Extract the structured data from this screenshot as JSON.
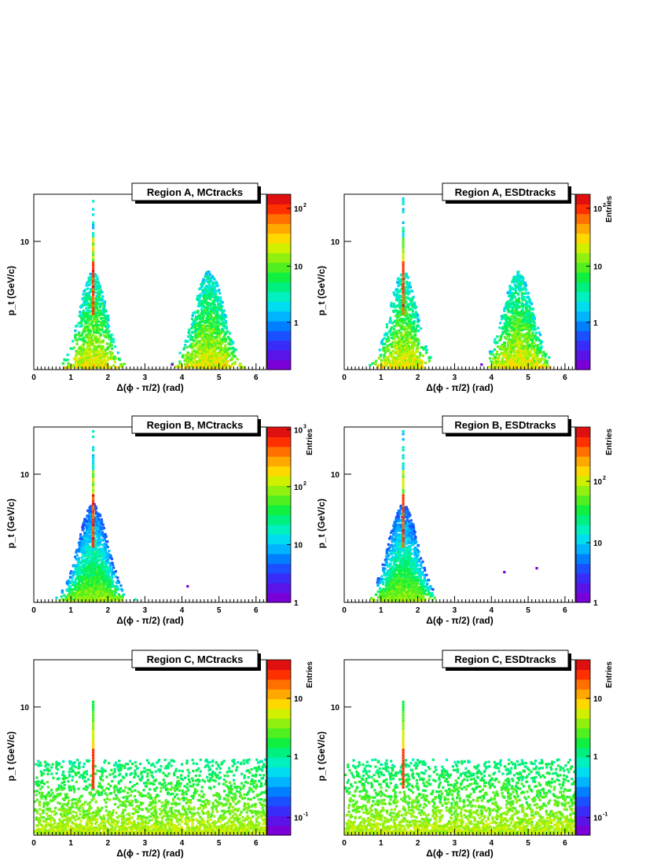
{
  "chart_data": [
    {
      "type": "heatmap",
      "title": "Region A, MCtracks",
      "xlabel": "Δ(ϕ - π/2) (rad)",
      "ylabel": "p_t (GeV/c)",
      "xlim": [
        0,
        6.28
      ],
      "x_ticks": [
        "0",
        "1",
        "2",
        "3",
        "4",
        "5",
        "6"
      ],
      "y_ticks": [
        "10"
      ],
      "y_scale": "log",
      "colorbar": {
        "scale": "log",
        "title": "",
        "ticks": [
          {
            "label": "1",
            "exp": ""
          },
          {
            "label": "10",
            "exp": ""
          },
          {
            "label": "10",
            "exp": "2"
          }
        ]
      },
      "pattern": "two-peaks"
    },
    {
      "type": "heatmap",
      "title": "Region A, ESDtracks",
      "xlabel": "Δ(ϕ - π/2) (rad)",
      "ylabel": "p_t (GeV/c)",
      "xlim": [
        0,
        6.28
      ],
      "x_ticks": [
        "0",
        "1",
        "2",
        "3",
        "4",
        "5",
        "6"
      ],
      "y_ticks": [
        "10"
      ],
      "y_scale": "log",
      "colorbar": {
        "scale": "log",
        "title": "Entries",
        "ticks": [
          {
            "label": "1",
            "exp": ""
          },
          {
            "label": "10",
            "exp": ""
          },
          {
            "label": "10",
            "exp": "2"
          }
        ]
      },
      "pattern": "two-peaks"
    },
    {
      "type": "heatmap",
      "title": "Region B, MCtracks",
      "xlabel": "Δ(ϕ - π/2) (rad)",
      "ylabel": "p_t (GeV/c)",
      "xlim": [
        0,
        6.28
      ],
      "x_ticks": [
        "0",
        "1",
        "2",
        "3",
        "4",
        "5",
        "6"
      ],
      "y_ticks": [
        "10"
      ],
      "y_scale": "log",
      "colorbar": {
        "scale": "log",
        "title": "Entries",
        "ticks": [
          {
            "label": "1",
            "exp": ""
          },
          {
            "label": "10",
            "exp": ""
          },
          {
            "label": "10",
            "exp": "2"
          },
          {
            "label": "10",
            "exp": "3"
          }
        ]
      },
      "pattern": "one-peak"
    },
    {
      "type": "heatmap",
      "title": "Region B, ESDtracks",
      "xlabel": "Δ(ϕ - π/2) (rad)",
      "ylabel": "p_t (GeV/c)",
      "xlim": [
        0,
        6.28
      ],
      "x_ticks": [
        "0",
        "1",
        "2",
        "3",
        "4",
        "5",
        "6"
      ],
      "y_ticks": [
        "10"
      ],
      "y_scale": "log",
      "colorbar": {
        "scale": "log",
        "title": "Entries",
        "ticks": [
          {
            "label": "1",
            "exp": ""
          },
          {
            "label": "10",
            "exp": ""
          },
          {
            "label": "10",
            "exp": "2"
          }
        ]
      },
      "pattern": "one-peak"
    },
    {
      "type": "heatmap",
      "title": "Region C, MCtracks",
      "xlabel": "Δ(ϕ - π/2) (rad)",
      "ylabel": "p_t (GeV/c)",
      "xlim": [
        0,
        6.28
      ],
      "x_ticks": [
        "0",
        "1",
        "2",
        "3",
        "4",
        "5",
        "6"
      ],
      "y_ticks": [
        "10"
      ],
      "y_scale": "log",
      "colorbar": {
        "scale": "log",
        "title": "Entries",
        "ticks": [
          {
            "label": "10",
            "exp": "-1"
          },
          {
            "label": "1",
            "exp": ""
          },
          {
            "label": "10",
            "exp": ""
          }
        ]
      },
      "pattern": "flat"
    },
    {
      "type": "heatmap",
      "title": "Region C, ESDtracks",
      "xlabel": "Δ(ϕ - π/2) (rad)",
      "ylabel": "p_t (GeV/c)",
      "xlim": [
        0,
        6.28
      ],
      "x_ticks": [
        "0",
        "1",
        "2",
        "3",
        "4",
        "5",
        "6"
      ],
      "y_ticks": [
        "10"
      ],
      "y_scale": "log",
      "colorbar": {
        "scale": "log",
        "title": "Entries",
        "ticks": [
          {
            "label": "10",
            "exp": "-1"
          },
          {
            "label": "1",
            "exp": ""
          },
          {
            "label": "10",
            "exp": ""
          }
        ]
      },
      "pattern": "flat"
    }
  ]
}
